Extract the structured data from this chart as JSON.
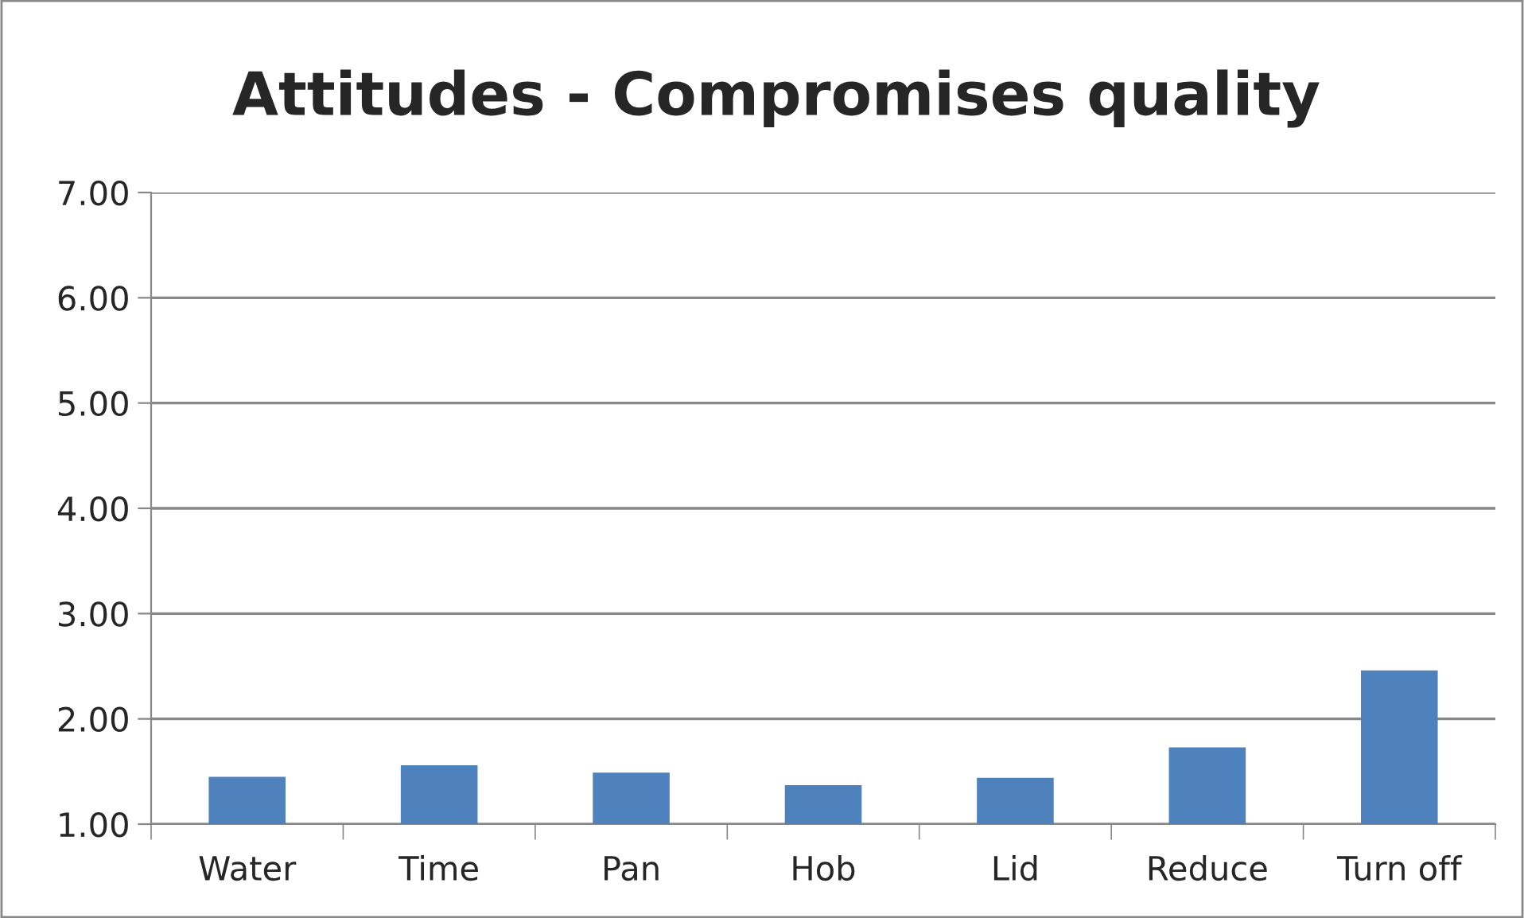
{
  "chart_data": {
    "type": "bar",
    "title": "Attitudes - Compromises quality",
    "categories": [
      "Water",
      "Time",
      "Pan",
      "Hob",
      "Lid",
      "Reduce",
      "Turn off"
    ],
    "values": [
      1.45,
      1.56,
      1.49,
      1.37,
      1.44,
      1.73,
      2.46
    ],
    "color": "#4f81bd",
    "ylim": [
      1,
      7
    ],
    "yticks": [
      {
        "value": 1,
        "label": "1.00"
      },
      {
        "value": 2,
        "label": "2.00"
      },
      {
        "value": 3,
        "label": "3.00"
      },
      {
        "value": 4,
        "label": "4.00"
      },
      {
        "value": 5,
        "label": "5.00"
      },
      {
        "value": 6,
        "label": "6.00"
      },
      {
        "value": 7,
        "label": "7.00"
      }
    ],
    "grid": "y",
    "legend": false
  }
}
